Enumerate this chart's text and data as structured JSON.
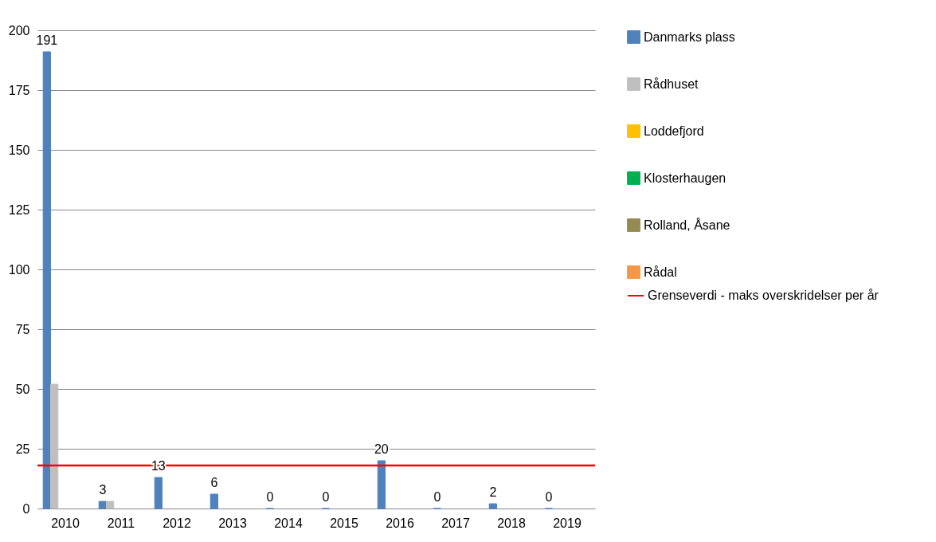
{
  "chart_data": {
    "type": "bar",
    "categories": [
      "2010",
      "2011",
      "2012",
      "2013",
      "2014",
      "2015",
      "2016",
      "2017",
      "2018",
      "2019"
    ],
    "series": [
      {
        "name": "Danmarks plass",
        "color": "#4f81bd",
        "values": [
          191,
          3,
          13,
          6,
          0,
          0,
          20,
          0,
          2,
          0
        ],
        "value_labels": [
          "191",
          "3",
          "13",
          "6",
          "0",
          "0",
          "20",
          "0",
          "2",
          "0"
        ]
      },
      {
        "name": "Rådhuset",
        "color": "#bfbfbf",
        "values": [
          52,
          3,
          null,
          null,
          null,
          null,
          null,
          null,
          null,
          null
        ]
      },
      {
        "name": "Loddefjord",
        "color": "#ffc000",
        "values": [
          null,
          null,
          null,
          null,
          null,
          null,
          null,
          null,
          null,
          null
        ]
      },
      {
        "name": "Klosterhaugen",
        "color": "#00b050",
        "values": [
          null,
          null,
          null,
          null,
          null,
          null,
          null,
          null,
          null,
          null
        ]
      },
      {
        "name": "Rolland, Åsane",
        "color": "#948a54",
        "values": [
          null,
          null,
          null,
          null,
          null,
          null,
          null,
          null,
          null,
          null
        ]
      },
      {
        "name": "Rådal",
        "color": "#f79646",
        "values": [
          null,
          null,
          null,
          null,
          null,
          null,
          null,
          null,
          null,
          null
        ]
      }
    ],
    "ylim": [
      0,
      200
    ],
    "yticks": [
      0,
      25,
      50,
      75,
      100,
      125,
      150,
      175,
      200
    ],
    "grid": "y",
    "legend": "right",
    "ref_lines": [
      {
        "axis": "y",
        "value": 18,
        "label": "Grenseverdi - maks overskridelser per år",
        "color": "#ff0000"
      }
    ]
  }
}
